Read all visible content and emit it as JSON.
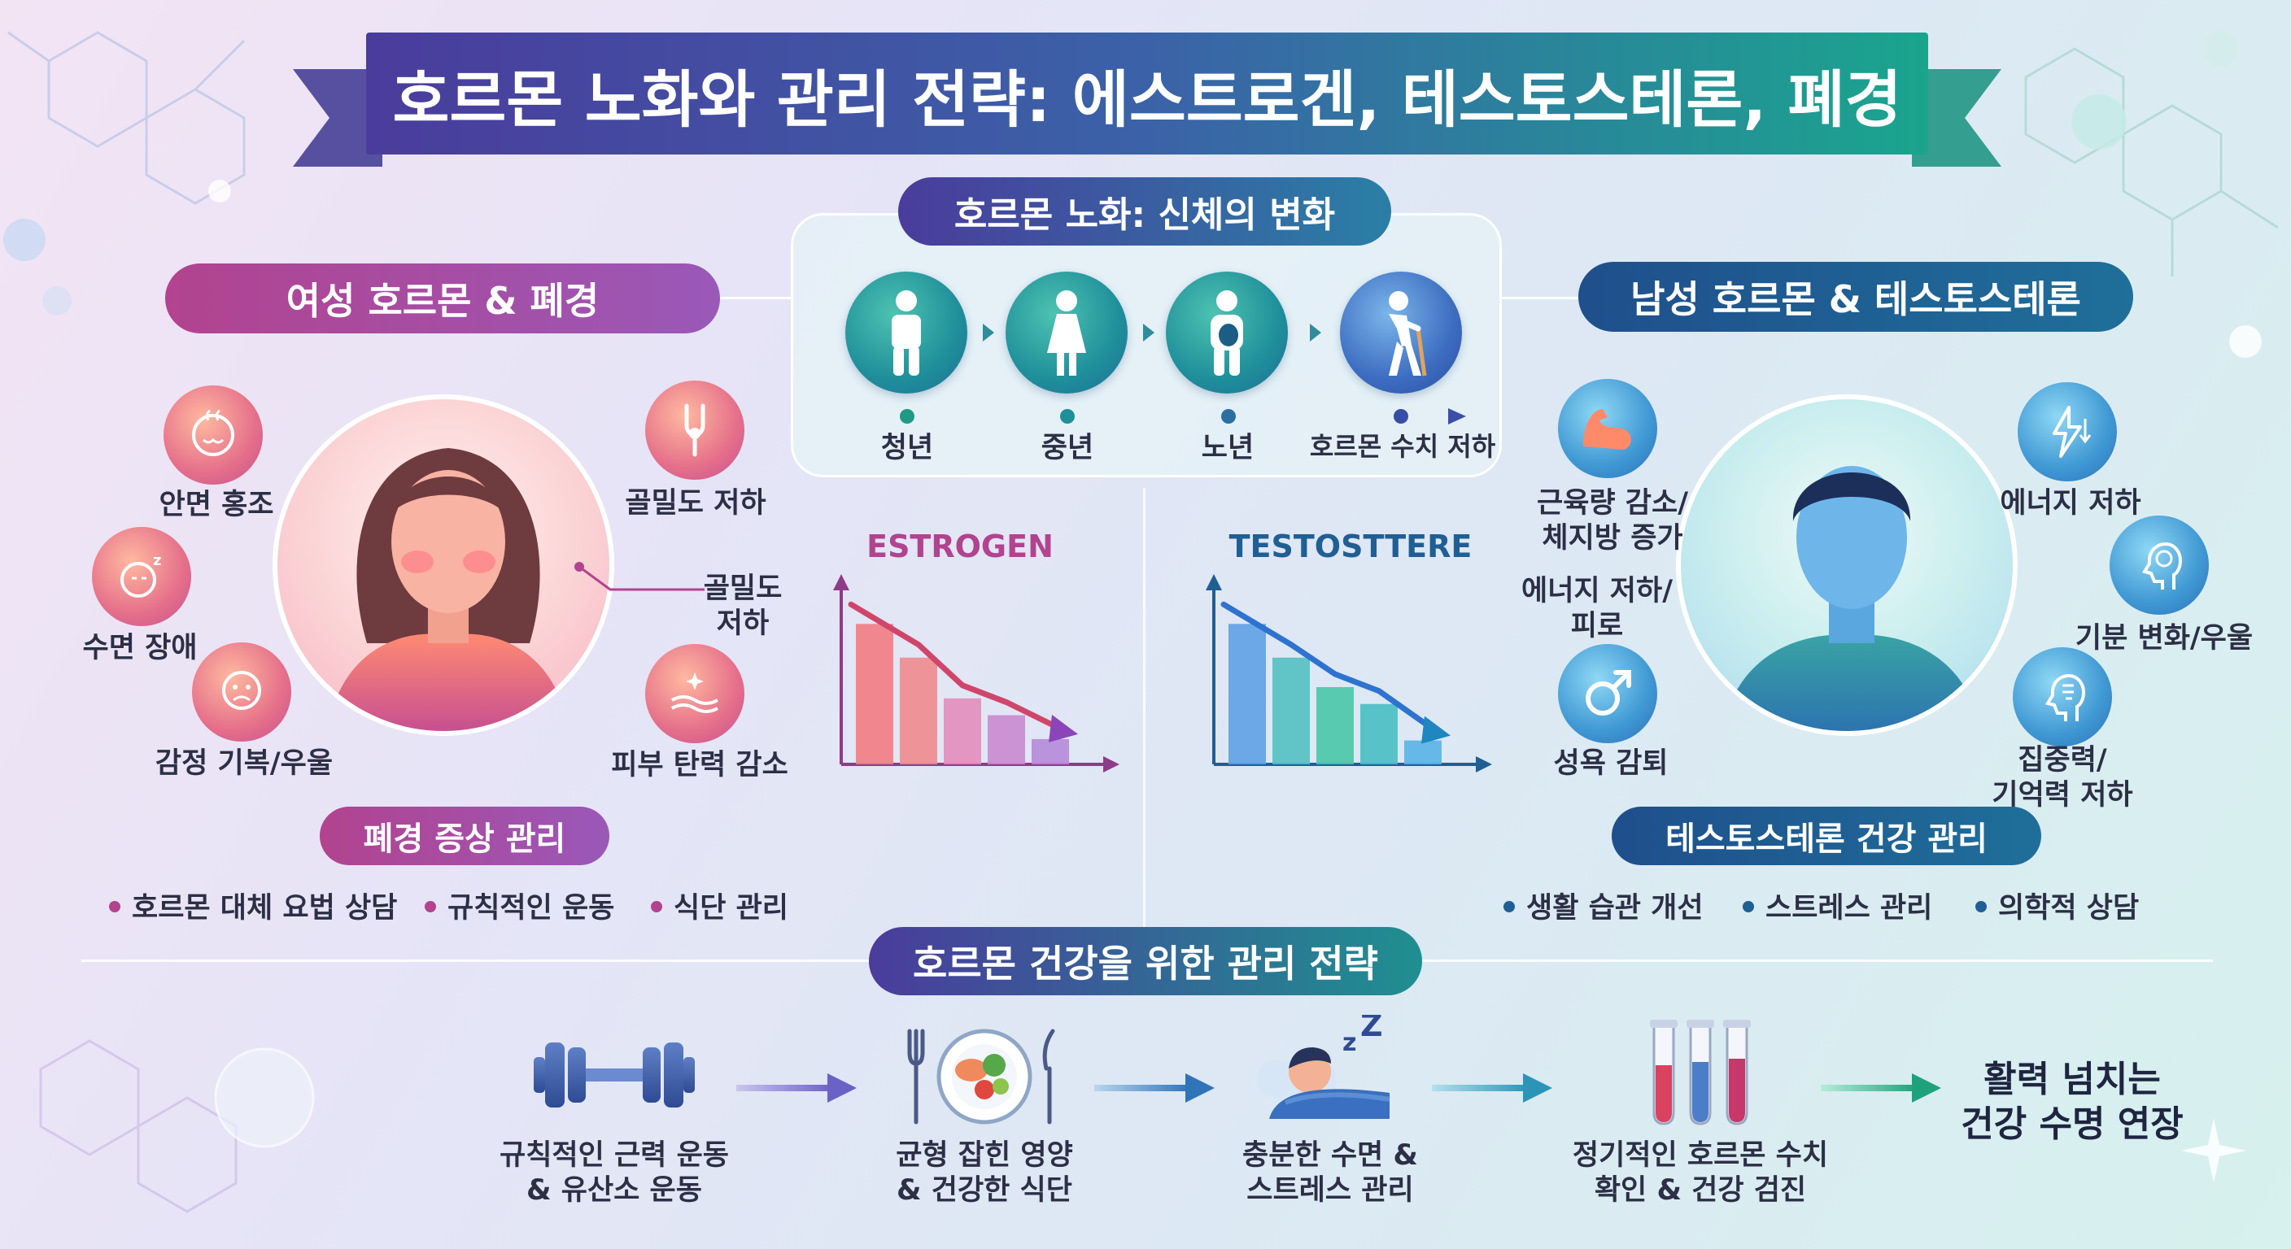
{
  "title": "호르몬 노화와 관리 전략: 에스트로겐, 테스토스테론, 폐경",
  "aging": {
    "header": "호르몬 노화: 신체의 변화",
    "stages": [
      "청년",
      "중년",
      "노년",
      "호르몬 수치 저하"
    ]
  },
  "female": {
    "header": "여성 호르몬 & 폐경",
    "symptoms": {
      "flush": "안면 홍조",
      "bone": "골밀도 저하",
      "sleep": "수면 장애",
      "bone_callout": "골밀도\n저하",
      "mood": "감정 기복/우울",
      "skin": "피부 탄력 감소"
    },
    "chart_title": "ESTROGEN",
    "management_header": "폐경 증상 관리",
    "management": [
      "호르몬 대체 요법 상담",
      "규칙적인 운동",
      "식단 관리"
    ]
  },
  "male": {
    "header": "남성 호르몬 & 테스토스테론",
    "symptoms": {
      "muscle": "근육량 감소/\n체지방 증가",
      "energy": "에너지 저하",
      "fatigue": "에너지 저하/\n피로",
      "mood": "기분 변화/우울",
      "libido": "성욕 감퇴",
      "focus": "집중력/\n기억력 저하"
    },
    "chart_title": "TESTOSTTERE",
    "management_header": "테스토스테론 건강 관리",
    "management": [
      "생활 습관 개선",
      "스트레스 관리",
      "의학적 상담"
    ]
  },
  "strategy": {
    "header": "호르몬 건강을 위한 관리 전략",
    "steps": [
      {
        "icon": "dumbbell-icon",
        "label": "규칙적인 근력 운동\n& 유산소 운동"
      },
      {
        "icon": "healthy-plate-icon",
        "label": "균형 잡힌 영양\n& 건강한 식단"
      },
      {
        "icon": "sleeping-person-icon",
        "label": "충분한 수면 &\n스트레스 관리"
      },
      {
        "icon": "test-tubes-icon",
        "label": "정기적인 호르몬 수치\n확인 & 건강 검진"
      }
    ],
    "result": "활력 넘치는\n건강 수명 연장"
  },
  "colors": {
    "female_accent": "#b2438f",
    "male_accent": "#1f5f94",
    "title_start": "#4a3c9c",
    "title_end": "#1aa58e",
    "timeline_teal": "#1f8f9a"
  },
  "chart_data": [
    {
      "type": "bar",
      "title": "ESTROGEN",
      "categories": [
        "1",
        "2",
        "3",
        "4",
        "5"
      ],
      "values": [
        100,
        76,
        47,
        35,
        18
      ],
      "trend": "decreasing",
      "ylim": [
        0,
        110
      ]
    },
    {
      "type": "bar",
      "title": "TESTOSTTERE",
      "categories": [
        "1",
        "2",
        "3",
        "4",
        "5"
      ],
      "values": [
        100,
        76,
        55,
        43,
        17
      ],
      "trend": "decreasing",
      "ylim": [
        0,
        110
      ]
    }
  ]
}
